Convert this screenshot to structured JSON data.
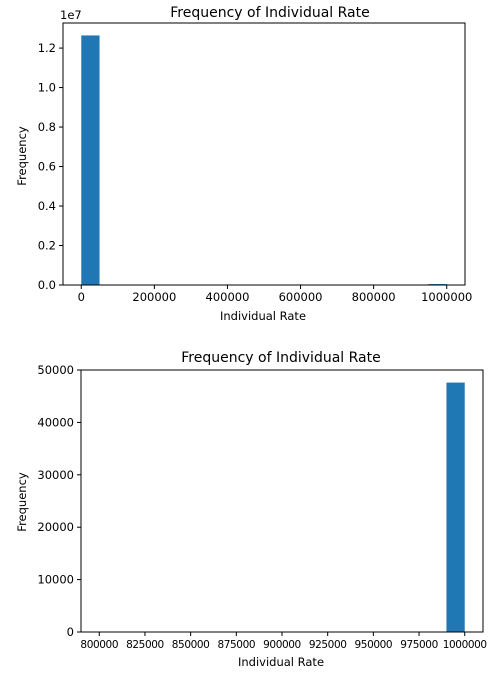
{
  "chart_data": [
    {
      "type": "bar",
      "title": "Frequency of Individual Rate",
      "xlabel": "Individual Rate",
      "ylabel": "Frequency",
      "y_offset_label": "1e7",
      "xlim": [
        -50000,
        1050000
      ],
      "ylim": [
        0,
        13270000
      ],
      "xticks": [
        0,
        200000,
        400000,
        600000,
        800000,
        1000000
      ],
      "xtick_labels": [
        "0",
        "200000",
        "400000",
        "600000",
        "800000",
        "1000000"
      ],
      "yticks": [
        0,
        2000000,
        4000000,
        6000000,
        8000000,
        10000000,
        12000000
      ],
      "ytick_labels": [
        "0.0",
        "0.2",
        "0.4",
        "0.6",
        "0.8",
        "1.0",
        "1.2"
      ],
      "bins": [
        {
          "x0": 0,
          "x1": 50000,
          "value": 12640000
        },
        {
          "x0": 950000,
          "x1": 1000000,
          "value": 47600
        }
      ],
      "color": "#1f77b4",
      "grid": false
    },
    {
      "type": "bar",
      "title": "Frequency of Individual Rate",
      "xlabel": "Individual Rate",
      "ylabel": "Frequency",
      "xlim": [
        790000,
        1010000
      ],
      "ylim": [
        0,
        50000
      ],
      "xticks": [
        800000,
        825000,
        850000,
        875000,
        900000,
        925000,
        950000,
        975000,
        1000000
      ],
      "xtick_labels": [
        "800000",
        "825000",
        "850000",
        "875000",
        "900000",
        "925000",
        "950000",
        "975000",
        "1000000"
      ],
      "yticks": [
        0,
        10000,
        20000,
        30000,
        40000,
        50000
      ],
      "ytick_labels": [
        "0",
        "10000",
        "20000",
        "30000",
        "40000",
        "50000"
      ],
      "bins": [
        {
          "x0": 990000,
          "x1": 1000000,
          "value": 47600
        }
      ],
      "color": "#1f77b4",
      "grid": false
    }
  ]
}
